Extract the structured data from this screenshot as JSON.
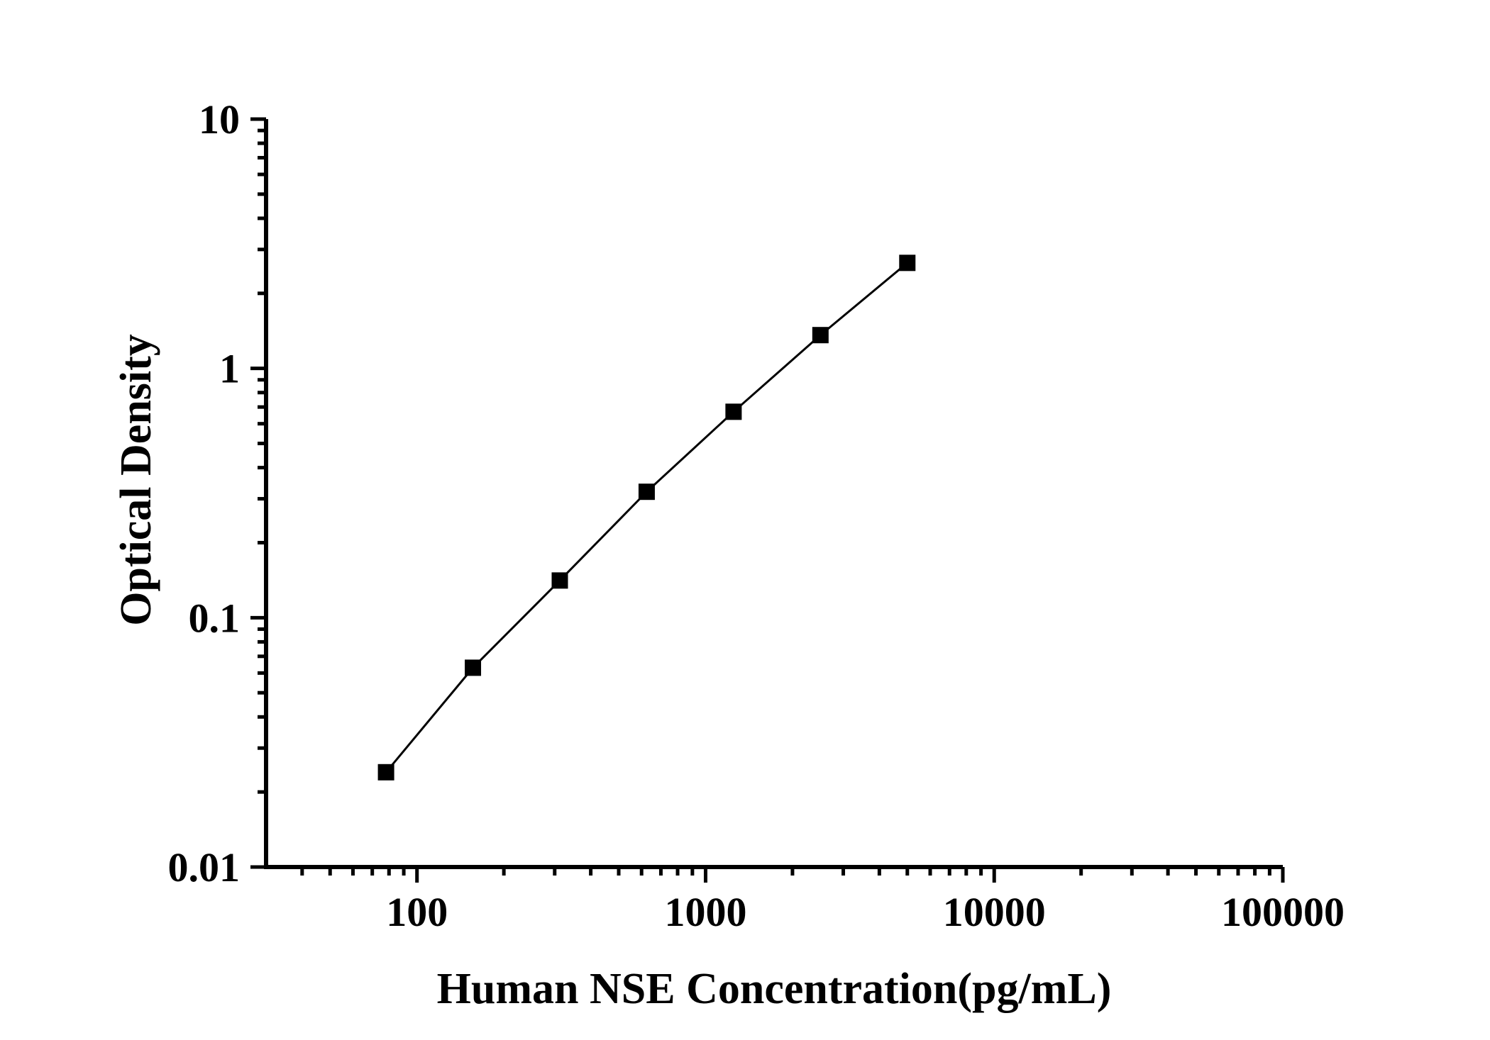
{
  "figure": {
    "background": "#ffffff",
    "foreground": "#000000"
  },
  "chart_data": {
    "type": "scatter",
    "subtype": "log-log ELISA standard curve, filled square markers connected by a line",
    "title": "",
    "xlabel": "Human NSE Concentration(pg/mL)",
    "ylabel": "Optical Density",
    "x_scale": "log",
    "y_scale": "log",
    "xlim": [
      30,
      100000
    ],
    "ylim": [
      0.01,
      10
    ],
    "grid": false,
    "legend": null,
    "x_ticks": [
      {
        "value": 100,
        "label": "100"
      },
      {
        "value": 1000,
        "label": "1000"
      },
      {
        "value": 10000,
        "label": "10000"
      },
      {
        "value": 100000,
        "label": "100000"
      }
    ],
    "y_ticks": [
      {
        "value": 10,
        "label": "10"
      },
      {
        "value": 1,
        "label": "1"
      },
      {
        "value": 0.1,
        "label": "0.1"
      },
      {
        "value": 0.01,
        "label": "0.01"
      }
    ],
    "series": [
      {
        "name": "standard-curve",
        "marker": "filled-square",
        "line": "solid",
        "color": "#000000",
        "x": [
          78.125,
          156.25,
          312.5,
          625,
          1250,
          2500,
          5000
        ],
        "y": [
          0.024,
          0.063,
          0.141,
          0.32,
          0.67,
          1.36,
          2.65
        ]
      }
    ]
  }
}
